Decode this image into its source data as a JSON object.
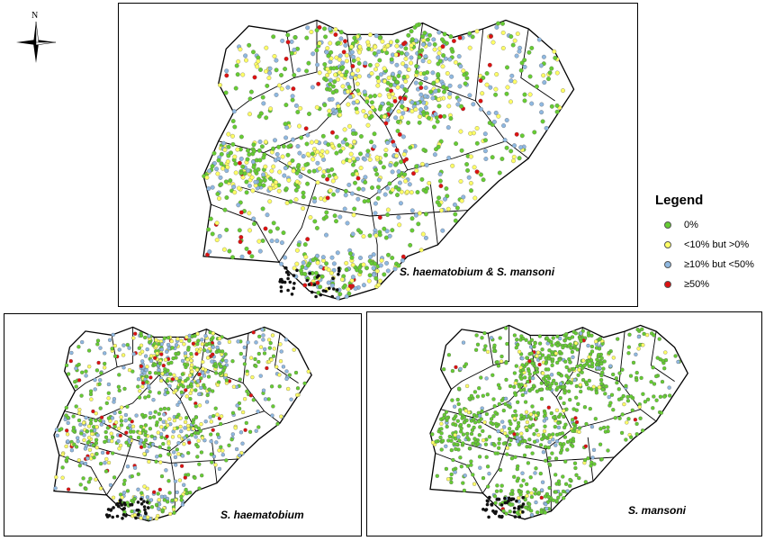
{
  "compass": {
    "north_label": "N"
  },
  "legend": {
    "title": "Legend",
    "items": [
      {
        "label": "0%",
        "color": "#66cc33"
      },
      {
        "label": "<10% but >0%",
        "color": "#ffff66"
      },
      {
        "label": "≥10% but <50%",
        "color": "#8fb8e0"
      },
      {
        "label": "≥50%",
        "color": "#dd1111"
      }
    ]
  },
  "maps": [
    {
      "caption": "S. haematobium & S. mansoni",
      "mix": [
        0.42,
        0.27,
        0.25,
        0.06
      ]
    },
    {
      "caption": "S. haematobium",
      "mix": [
        0.38,
        0.3,
        0.27,
        0.05
      ]
    },
    {
      "caption": "S. mansoni",
      "mix": [
        0.8,
        0.08,
        0.11,
        0.01
      ]
    }
  ]
}
